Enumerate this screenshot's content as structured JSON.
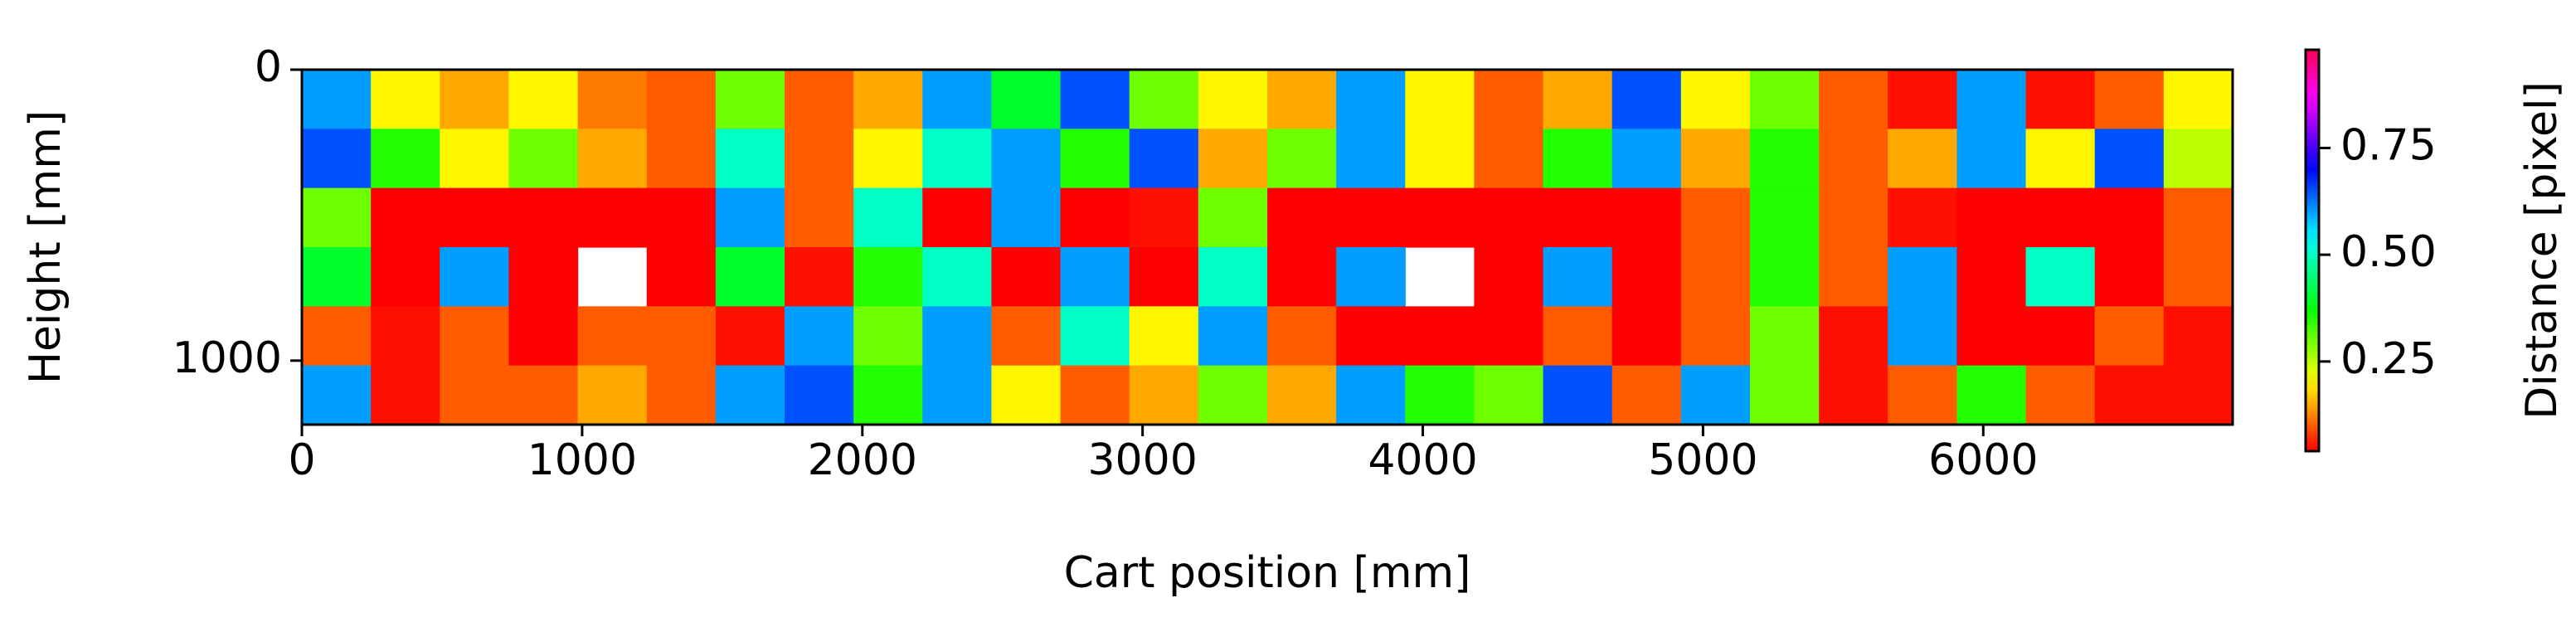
{
  "chart_data": {
    "type": "heatmap",
    "xlabel": "Cart position [mm]",
    "ylabel": "Height [mm]",
    "colorbar_label": "Distance [pixel]",
    "xlim": [
      0,
      6890
    ],
    "ylim": [
      0,
      1220
    ],
    "invert_y": true,
    "xticks": [
      0,
      1000,
      2000,
      3000,
      4000,
      5000,
      6000
    ],
    "yticks": [
      0,
      1000
    ],
    "colormap": "hsv",
    "clim": [
      0.04,
      0.98
    ],
    "cticks": [
      {
        "value": 0.25,
        "label": "0.25"
      },
      {
        "value": 0.5,
        "label": "0.50"
      },
      {
        "value": 0.75,
        "label": "0.75"
      }
    ],
    "z": [
      [
        0.6,
        0.2,
        0.15,
        0.2,
        0.12,
        0.1,
        0.3,
        0.1,
        0.15,
        0.6,
        0.4,
        0.65,
        0.3,
        0.2,
        0.15,
        0.6,
        0.2,
        0.1,
        0.15,
        0.65,
        0.2,
        0.3,
        0.1,
        0.05,
        0.6,
        0.05,
        0.1,
        0.2
      ],
      [
        0.65,
        0.35,
        0.2,
        0.3,
        0.15,
        0.1,
        0.5,
        0.1,
        0.2,
        0.5,
        0.6,
        0.35,
        0.65,
        0.15,
        0.3,
        0.6,
        0.2,
        0.1,
        0.35,
        0.6,
        0.15,
        0.35,
        0.1,
        0.15,
        0.6,
        0.2,
        0.65,
        0.25
      ],
      [
        0.3,
        0.04,
        0.04,
        0.04,
        0.04,
        0.04,
        0.6,
        0.1,
        0.5,
        0.04,
        0.6,
        0.04,
        0.05,
        0.3,
        0.04,
        0.04,
        0.04,
        0.04,
        0.04,
        0.04,
        0.1,
        0.35,
        0.1,
        0.05,
        0.04,
        0.04,
        0.04,
        0.1
      ],
      [
        0.4,
        0.04,
        0.6,
        0.04,
        null,
        0.04,
        0.4,
        0.05,
        0.35,
        0.5,
        0.04,
        0.6,
        0.04,
        0.5,
        0.04,
        0.6,
        null,
        0.04,
        0.6,
        0.04,
        0.1,
        0.35,
        0.1,
        0.6,
        0.04,
        0.5,
        0.04,
        0.1
      ],
      [
        0.1,
        0.05,
        0.1,
        0.04,
        0.1,
        0.1,
        0.05,
        0.6,
        0.3,
        0.6,
        0.1,
        0.5,
        0.2,
        0.6,
        0.1,
        0.04,
        0.04,
        0.04,
        0.1,
        0.04,
        0.1,
        0.3,
        0.05,
        0.6,
        0.04,
        0.04,
        0.1,
        0.05
      ],
      [
        0.6,
        0.05,
        0.1,
        0.1,
        0.15,
        0.1,
        0.6,
        0.65,
        0.35,
        0.6,
        0.2,
        0.1,
        0.15,
        0.3,
        0.15,
        0.6,
        0.35,
        0.3,
        0.65,
        0.1,
        0.6,
        0.3,
        0.05,
        0.1,
        0.35,
        0.1,
        0.05,
        0.05
      ]
    ]
  }
}
